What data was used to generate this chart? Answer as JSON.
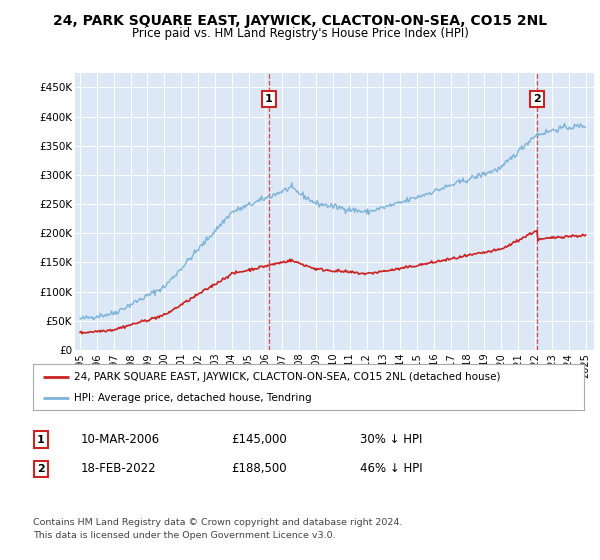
{
  "title": "24, PARK SQUARE EAST, JAYWICK, CLACTON-ON-SEA, CO15 2NL",
  "subtitle": "Price paid vs. HM Land Registry's House Price Index (HPI)",
  "bg_color": "#dce8f5",
  "hpi_color": "#7eb3d8",
  "price_color": "#cc2222",
  "dashed_line_color": "#cc3333",
  "marker1_x": 2006.19,
  "marker2_x": 2022.12,
  "legend_house_label": "24, PARK SQUARE EAST, JAYWICK, CLACTON-ON-SEA, CO15 2NL (detached house)",
  "legend_hpi_label": "HPI: Average price, detached house, Tendring",
  "footer": "Contains HM Land Registry data © Crown copyright and database right 2024.\nThis data is licensed under the Open Government Licence v3.0.",
  "ylim": [
    0,
    475000
  ],
  "yticks": [
    0,
    50000,
    100000,
    150000,
    200000,
    250000,
    300000,
    350000,
    400000,
    450000
  ],
  "xlim": [
    1994.7,
    2025.5
  ],
  "xticks": [
    1995,
    1996,
    1997,
    1998,
    1999,
    2000,
    2001,
    2002,
    2003,
    2004,
    2005,
    2006,
    2007,
    2008,
    2009,
    2010,
    2011,
    2012,
    2013,
    2014,
    2015,
    2016,
    2017,
    2018,
    2019,
    2020,
    2021,
    2022,
    2023,
    2024,
    2025
  ]
}
